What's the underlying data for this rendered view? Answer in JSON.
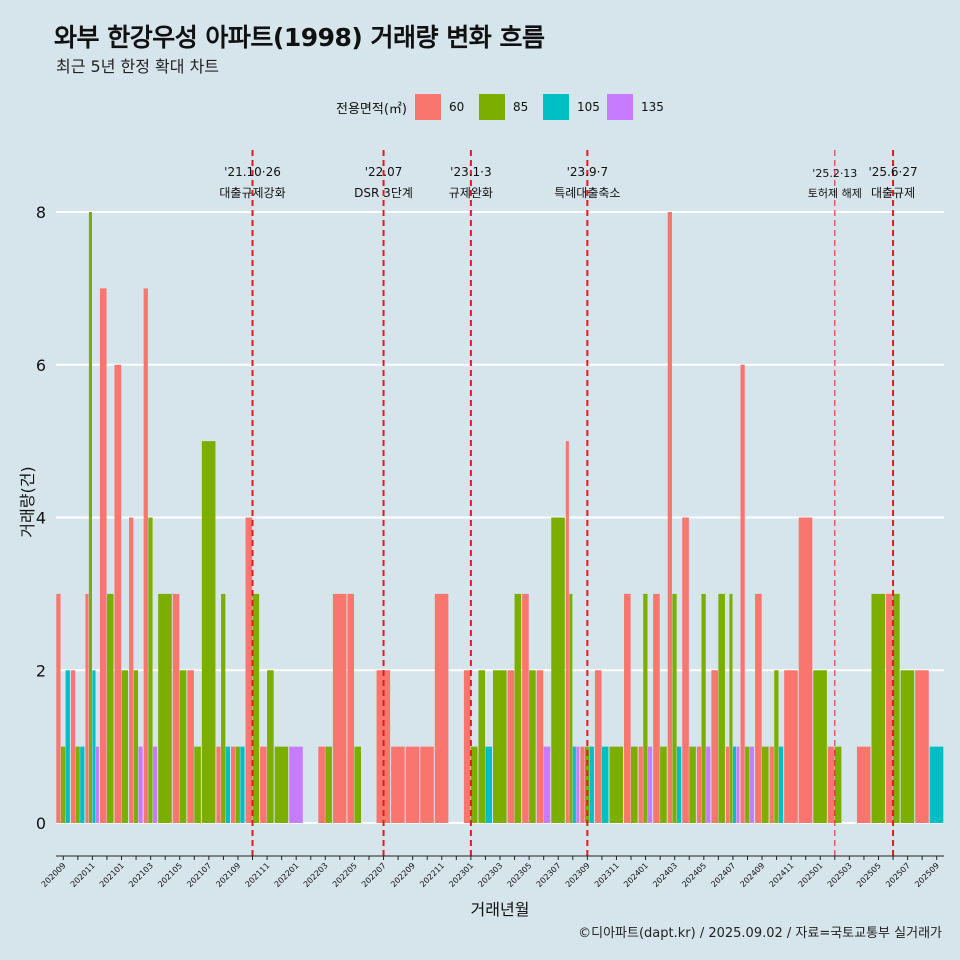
{
  "title": "와부 한강우성 아파트(1998) 거래량 변화 흐름",
  "subtitle": "최근 5년 한정 확대 차트",
  "caption": "©디아파트(dapt.kr) / 2025.09.02 / 자료=국토교통부 실거래가",
  "legend": {
    "title": "전용면적(㎡)",
    "items": [
      {
        "label": "60",
        "color": "#f8766d"
      },
      {
        "label": "85",
        "color": "#7cae00"
      },
      {
        "label": "105",
        "color": "#00bfc4"
      },
      {
        "label": "135",
        "color": "#c77cff"
      }
    ]
  },
  "chart_data": {
    "type": "bar",
    "xlabel": "거래년월",
    "ylabel": "거래량(건)",
    "ylim": [
      0,
      8
    ],
    "yticks": [
      0,
      2,
      4,
      6,
      8
    ],
    "grid": true,
    "legend_position": "top",
    "categories": [
      "202009",
      "202010",
      "202011",
      "202012",
      "202101",
      "202102",
      "202103",
      "202104",
      "202105",
      "202106",
      "202107",
      "202108",
      "202109",
      "202110",
      "202111",
      "202112",
      "202201",
      "202202",
      "202203",
      "202204",
      "202205",
      "202206",
      "202207",
      "202208",
      "202209",
      "202210",
      "202211",
      "202212",
      "202301",
      "202302",
      "202303",
      "202304",
      "202305",
      "202306",
      "202307",
      "202308",
      "202309",
      "202310",
      "202311",
      "202312",
      "202401",
      "202402",
      "202403",
      "202404",
      "202405",
      "202406",
      "202407",
      "202408",
      "202409",
      "202410",
      "202411",
      "202412",
      "202501",
      "202502",
      "202503",
      "202504",
      "202505",
      "202506",
      "202507",
      "202508",
      "202509"
    ],
    "series": [
      {
        "name": "60",
        "color": "#f8766d",
        "values": [
          3,
          2,
          3,
          7,
          6,
          4,
          7,
          0,
          3,
          2,
          0,
          1,
          1,
          4,
          1,
          0,
          0,
          0,
          1,
          3,
          3,
          0,
          2,
          1,
          1,
          1,
          3,
          0,
          2,
          0,
          0,
          2,
          3,
          2,
          0,
          5,
          1,
          2,
          0,
          3,
          1,
          3,
          8,
          4,
          1,
          2,
          1,
          6,
          3,
          1,
          2,
          4,
          0,
          1,
          0,
          1,
          0,
          3,
          0,
          2,
          0
        ]
      },
      {
        "name": "85",
        "color": "#7cae00",
        "values": [
          1,
          1,
          8,
          3,
          2,
          2,
          4,
          3,
          2,
          1,
          5,
          3,
          1,
          3,
          2,
          1,
          0,
          0,
          1,
          0,
          1,
          0,
          0,
          0,
          0,
          0,
          0,
          0,
          1,
          2,
          2,
          3,
          2,
          0,
          4,
          3,
          1,
          0,
          1,
          1,
          3,
          1,
          3,
          1,
          3,
          3,
          3,
          1,
          1,
          2,
          0,
          0,
          2,
          1,
          0,
          0,
          3,
          3,
          2,
          0,
          0
        ]
      },
      {
        "name": "105",
        "color": "#00bfc4",
        "values": [
          2,
          1,
          2,
          0,
          0,
          0,
          0,
          0,
          0,
          0,
          0,
          1,
          1,
          0,
          0,
          0,
          0,
          0,
          0,
          0,
          0,
          0,
          0,
          0,
          0,
          0,
          0,
          0,
          0,
          1,
          0,
          0,
          0,
          0,
          0,
          1,
          1,
          1,
          0,
          0,
          0,
          0,
          1,
          0,
          0,
          0,
          1,
          0,
          0,
          1,
          0,
          0,
          0,
          0,
          0,
          0,
          0,
          0,
          0,
          0,
          1
        ]
      },
      {
        "name": "135",
        "color": "#c77cff",
        "values": [
          0,
          0,
          1,
          0,
          0,
          1,
          1,
          0,
          0,
          0,
          0,
          0,
          0,
          0,
          0,
          0,
          1,
          0,
          0,
          0,
          0,
          0,
          0,
          0,
          0,
          0,
          0,
          0,
          0,
          0,
          0,
          0,
          0,
          1,
          0,
          1,
          0,
          0,
          0,
          0,
          1,
          0,
          0,
          0,
          1,
          0,
          1,
          1,
          0,
          0,
          0,
          0,
          0,
          0,
          0,
          0,
          0,
          0,
          0,
          0,
          0
        ]
      }
    ],
    "annotations": [
      {
        "x": "202110",
        "date": "'21.10·26",
        "label": "대출규제강화"
      },
      {
        "x": "202207",
        "date": "'22.07",
        "label": "DSR 3단계"
      },
      {
        "x": "202301",
        "date": "'23.1·3",
        "label": "규제완화"
      },
      {
        "x": "202309",
        "date": "'23.9·7",
        "label": "특례대출축소"
      },
      {
        "x": "202502",
        "date": "'25.2·13",
        "label": "토허제 해제"
      },
      {
        "x": "202506",
        "date": "'25.6·27",
        "label": "대출규제"
      }
    ],
    "annotation_color": "#e41a1c"
  }
}
